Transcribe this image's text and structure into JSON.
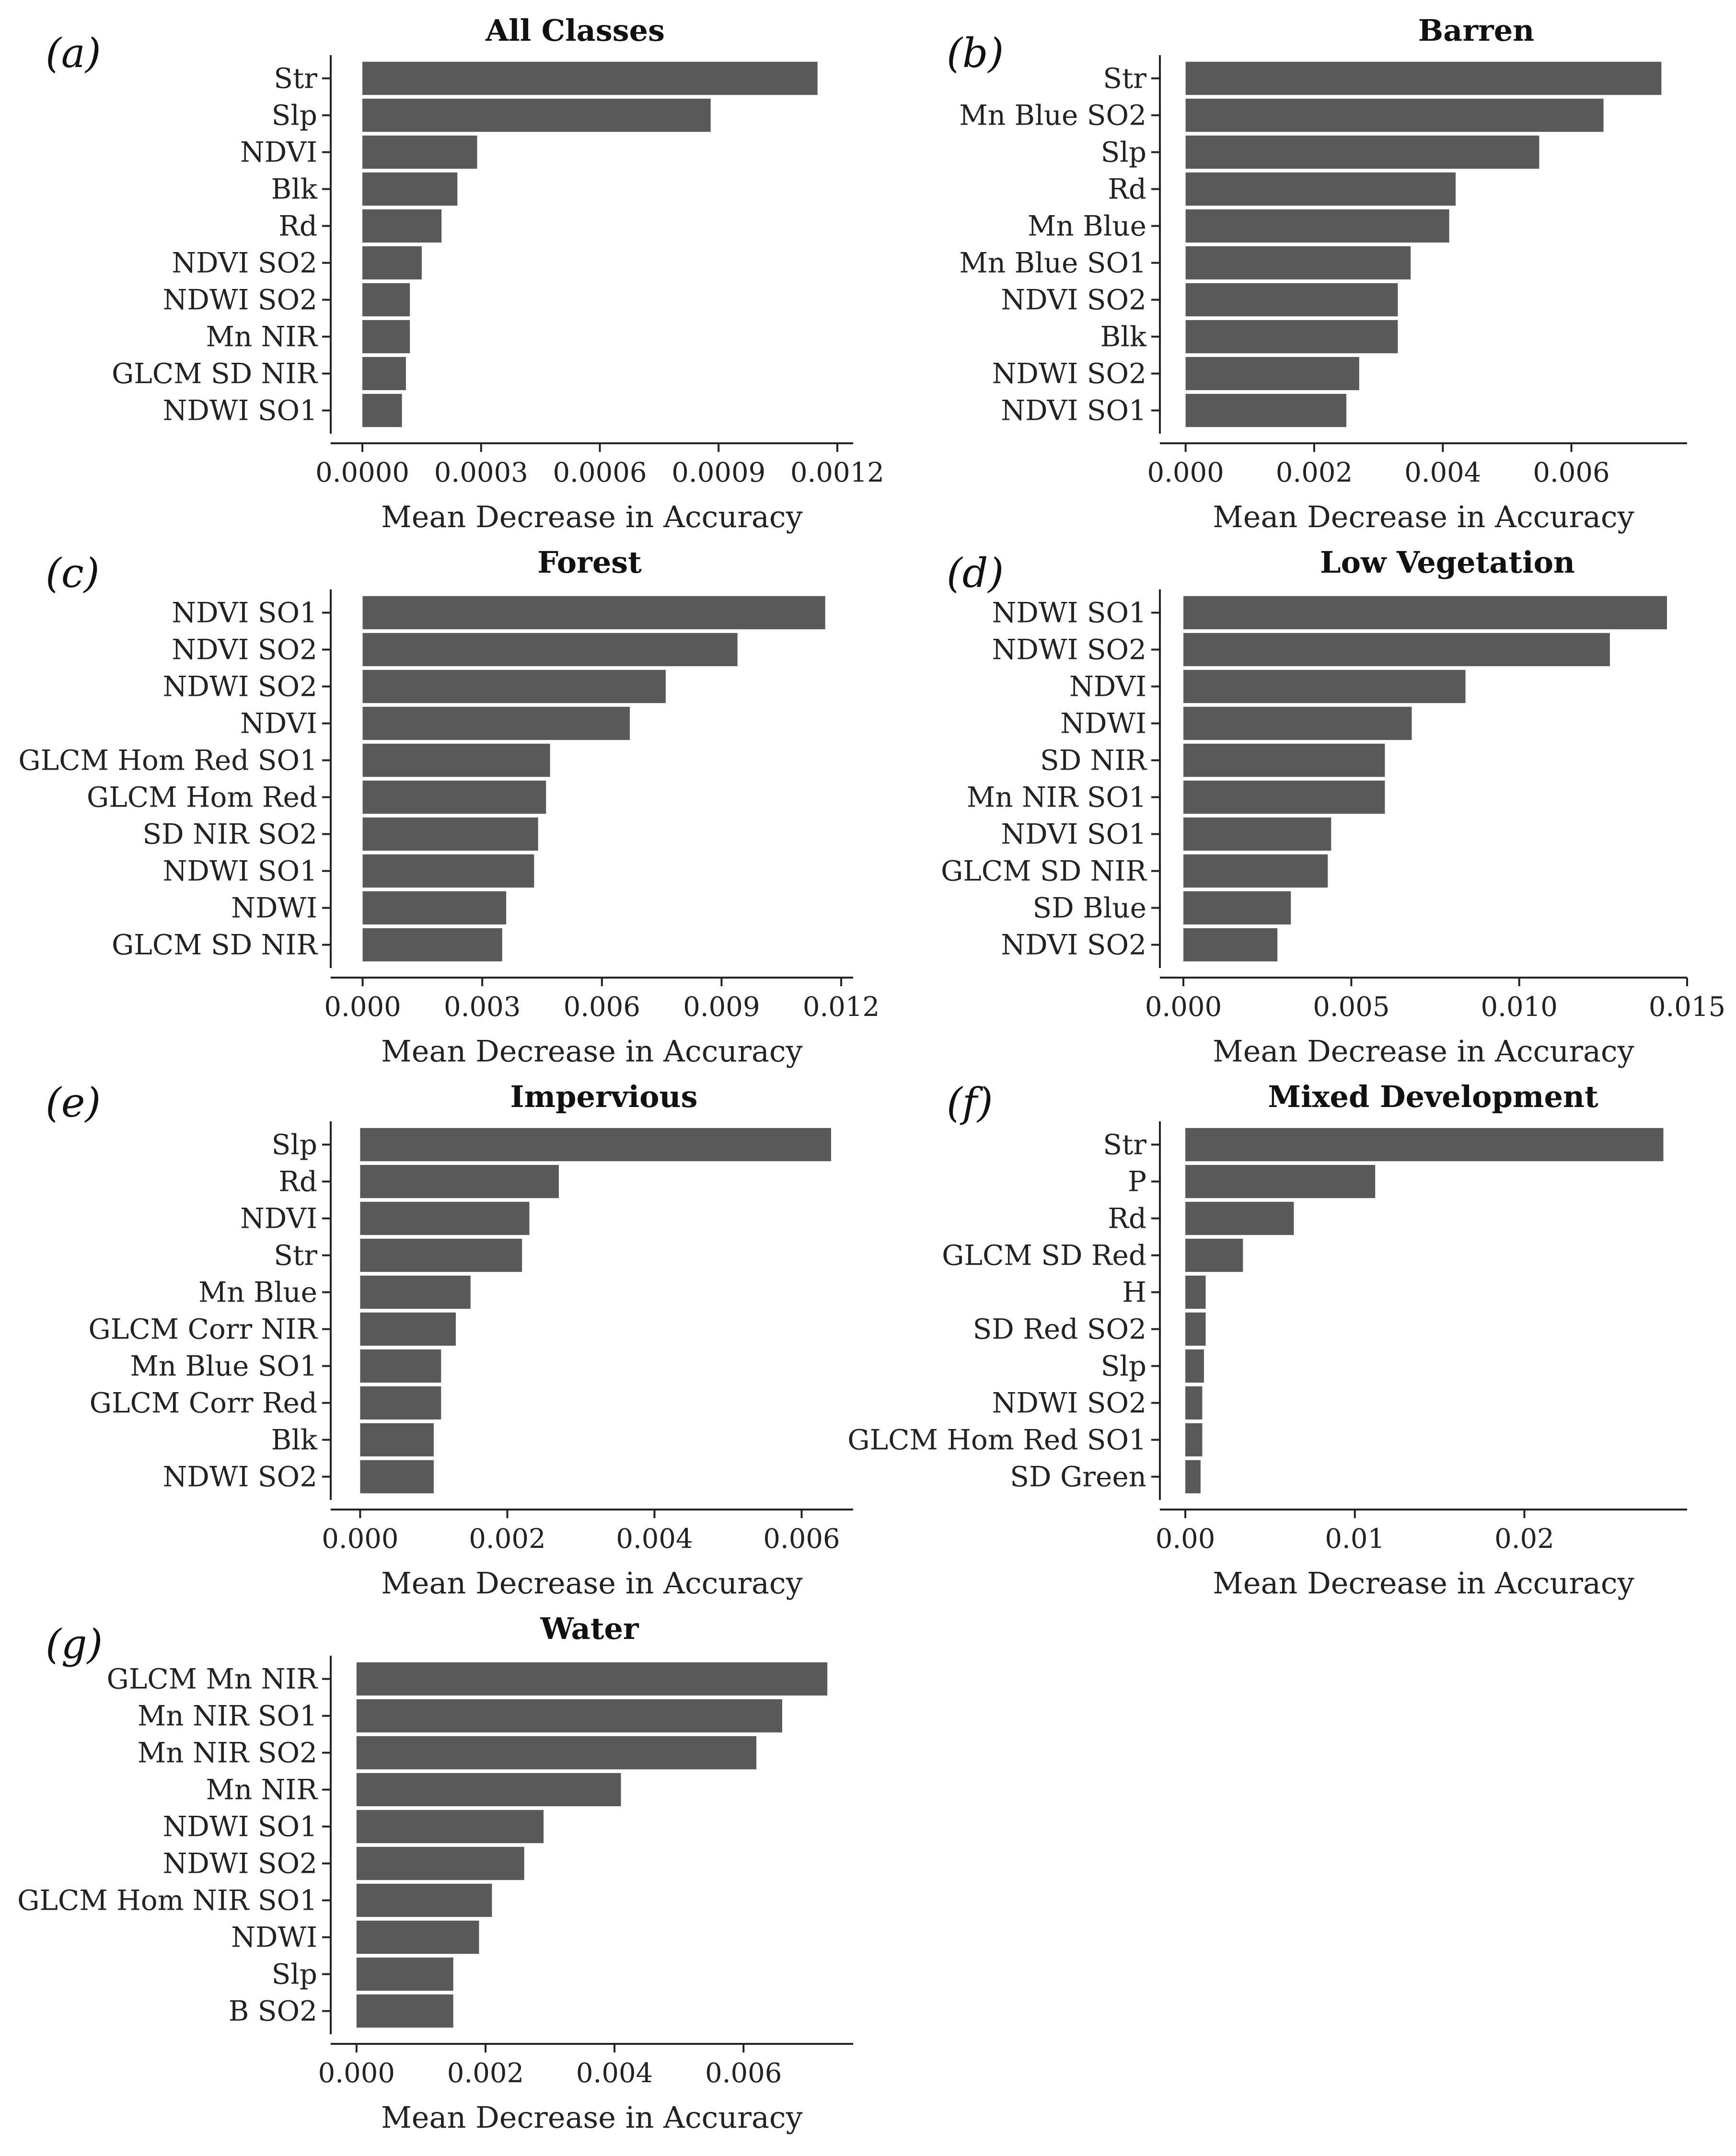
{
  "chart_data": [
    {
      "type": "bar",
      "orientation": "horizontal",
      "letter": "(a)",
      "title": "All Classes",
      "xlabel": "Mean Decrease in Accuracy",
      "categories": [
        "Str",
        "Slp",
        "NDVI",
        "Blk",
        "Rd",
        "NDVI SO2",
        "NDWI SO2",
        "Mn NIR",
        "GLCM SD NIR",
        "NDWI SO1"
      ],
      "values": [
        0.00115,
        0.00088,
        0.00029,
        0.00024,
        0.0002,
        0.00015,
        0.00012,
        0.00012,
        0.00011,
        0.0001
      ],
      "xlim": [
        -8e-05,
        0.00124
      ],
      "xticks": [
        0,
        0.0003,
        0.0006,
        0.0009,
        0.0012
      ],
      "xtick_labels": [
        "0.0000",
        "0.0003",
        "0.0006",
        "0.0009",
        "0.0012"
      ]
    },
    {
      "type": "bar",
      "orientation": "horizontal",
      "letter": "(b)",
      "title": "Barren",
      "xlabel": "Mean Decrease in Accuracy",
      "categories": [
        "Str",
        "Mn Blue SO2",
        "Slp",
        "Rd",
        "Mn Blue",
        "Mn Blue SO1",
        "NDVI SO2",
        "Blk",
        "NDWI SO2",
        "NDVI SO1"
      ],
      "values": [
        0.0074,
        0.0065,
        0.0055,
        0.0042,
        0.0041,
        0.0035,
        0.0033,
        0.0033,
        0.0027,
        0.0025
      ],
      "xlim": [
        -0.0004,
        0.0078
      ],
      "xticks": [
        0,
        0.002,
        0.004,
        0.006
      ],
      "xtick_labels": [
        "0.000",
        "0.002",
        "0.004",
        "0.006"
      ]
    },
    {
      "type": "bar",
      "orientation": "horizontal",
      "letter": "(c)",
      "title": "Forest",
      "xlabel": "Mean Decrease in Accuracy",
      "categories": [
        "NDVI SO1",
        "NDVI SO2",
        "NDWI SO2",
        "NDVI",
        "GLCM Hom Red SO1",
        "GLCM Hom Red",
        "SD NIR SO2",
        "NDWI SO1",
        "NDWI",
        "GLCM SD NIR"
      ],
      "values": [
        0.0116,
        0.0094,
        0.0076,
        0.0067,
        0.0047,
        0.0046,
        0.0044,
        0.0043,
        0.0036,
        0.0035
      ],
      "xlim": [
        -0.0008,
        0.0123
      ],
      "xticks": [
        0,
        0.003,
        0.006,
        0.009,
        0.012
      ],
      "xtick_labels": [
        "0.000",
        "0.003",
        "0.006",
        "0.009",
        "0.012"
      ]
    },
    {
      "type": "bar",
      "orientation": "horizontal",
      "letter": "(d)",
      "title": "Low Vegetation",
      "xlabel": "Mean Decrease in Accuracy",
      "categories": [
        "NDWI SO1",
        "NDWI SO2",
        "NDVI",
        "NDWI",
        "SD NIR",
        "Mn NIR SO1",
        "NDVI SO1",
        "GLCM SD NIR",
        "SD Blue",
        "NDVI SO2"
      ],
      "values": [
        0.0144,
        0.0127,
        0.0084,
        0.0068,
        0.006,
        0.006,
        0.0044,
        0.0043,
        0.0032,
        0.0028
      ],
      "xlim": [
        -0.0007,
        0.015
      ],
      "xticks": [
        0,
        0.005,
        0.01,
        0.015
      ],
      "xtick_labels": [
        "0.000",
        "0.005",
        "0.010",
        "0.015"
      ]
    },
    {
      "type": "bar",
      "orientation": "horizontal",
      "letter": "(e)",
      "title": "Impervious",
      "xlabel": "Mean Decrease in Accuracy",
      "categories": [
        "Slp",
        "Rd",
        "NDVI",
        "Str",
        "Mn Blue",
        "GLCM Corr NIR",
        "Mn Blue SO1",
        "GLCM Corr Red",
        "Blk",
        "NDWI SO2"
      ],
      "values": [
        0.0064,
        0.0027,
        0.0023,
        0.0022,
        0.0015,
        0.0013,
        0.0011,
        0.0011,
        0.001,
        0.001
      ],
      "xlim": [
        -0.0004,
        0.0067
      ],
      "xticks": [
        0,
        0.002,
        0.004,
        0.006
      ],
      "xtick_labels": [
        "0.000",
        "0.002",
        "0.004",
        "0.006"
      ]
    },
    {
      "type": "bar",
      "orientation": "horizontal",
      "letter": "(f)",
      "title": "Mixed Development",
      "xlabel": "Mean Decrease in Accuracy",
      "categories": [
        "Str",
        "P",
        "Rd",
        "GLCM SD Red",
        "H",
        "SD Red SO2",
        "Slp",
        "NDWI SO2",
        "GLCM Hom Red SO1",
        "SD Green"
      ],
      "values": [
        0.0282,
        0.0112,
        0.0064,
        0.0034,
        0.0012,
        0.0012,
        0.0011,
        0.001,
        0.001,
        0.0009
      ],
      "xlim": [
        -0.0015,
        0.0296
      ],
      "xticks": [
        0,
        0.01,
        0.02
      ],
      "xtick_labels": [
        "0.00",
        "0.01",
        "0.02"
      ]
    },
    {
      "type": "bar",
      "orientation": "horizontal",
      "letter": "(g)",
      "title": "Water",
      "xlabel": "Mean Decrease in Accuracy",
      "categories": [
        "GLCM Mn NIR",
        "Mn NIR SO1",
        "Mn NIR SO2",
        "Mn NIR",
        "NDWI SO1",
        "NDWI SO2",
        "GLCM Hom NIR SO1",
        "NDWI",
        "Slp",
        "B SO2"
      ],
      "values": [
        0.0073,
        0.0066,
        0.0062,
        0.0041,
        0.0029,
        0.0026,
        0.0021,
        0.0019,
        0.0015,
        0.0015
      ],
      "xlim": [
        -0.0004,
        0.0077
      ],
      "xticks": [
        0,
        0.002,
        0.004,
        0.006
      ],
      "xtick_labels": [
        "0.000",
        "0.002",
        "0.004",
        "0.006"
      ]
    }
  ]
}
